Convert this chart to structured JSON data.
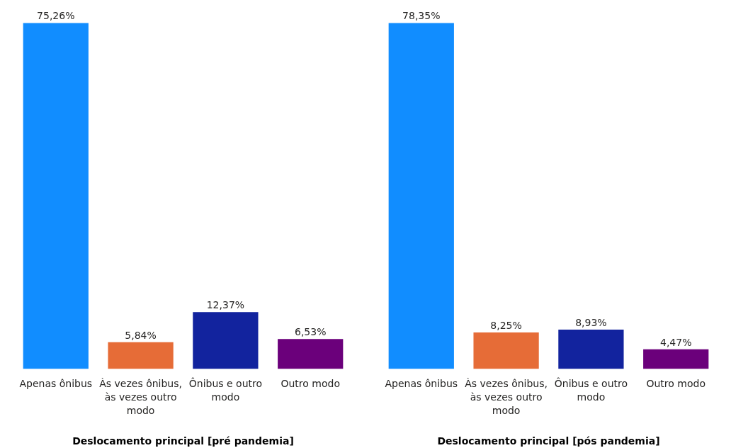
{
  "chart_data": [
    {
      "type": "bar",
      "xlabel": "Deslocamento principal [pré pandemia]",
      "categories": [
        "Apenas ônibus",
        "Às vezes ônibus, às vezes outro modo",
        "Ônibus e outro modo",
        "Outro modo"
      ],
      "values": [
        75.26,
        5.84,
        12.37,
        6.53
      ],
      "value_labels": [
        "75,26%",
        "5,84%",
        "12,37%",
        "6,53%"
      ],
      "colors": [
        "#118dff",
        "#e66c37",
        "#12239e",
        "#6b007b"
      ],
      "grid": false
    },
    {
      "type": "bar",
      "xlabel": "Deslocamento principal [pós pandemia]",
      "categories": [
        "Apenas ônibus",
        "Às vezes ônibus, às vezes outro modo",
        "Ônibus e outro modo",
        "Outro modo"
      ],
      "values": [
        78.35,
        8.25,
        8.93,
        4.47
      ],
      "value_labels": [
        "78,35%",
        "8,25%",
        "8,93%",
        "4,47%"
      ],
      "colors": [
        "#118dff",
        "#e66c37",
        "#12239e",
        "#6b007b"
      ],
      "grid": false
    }
  ]
}
